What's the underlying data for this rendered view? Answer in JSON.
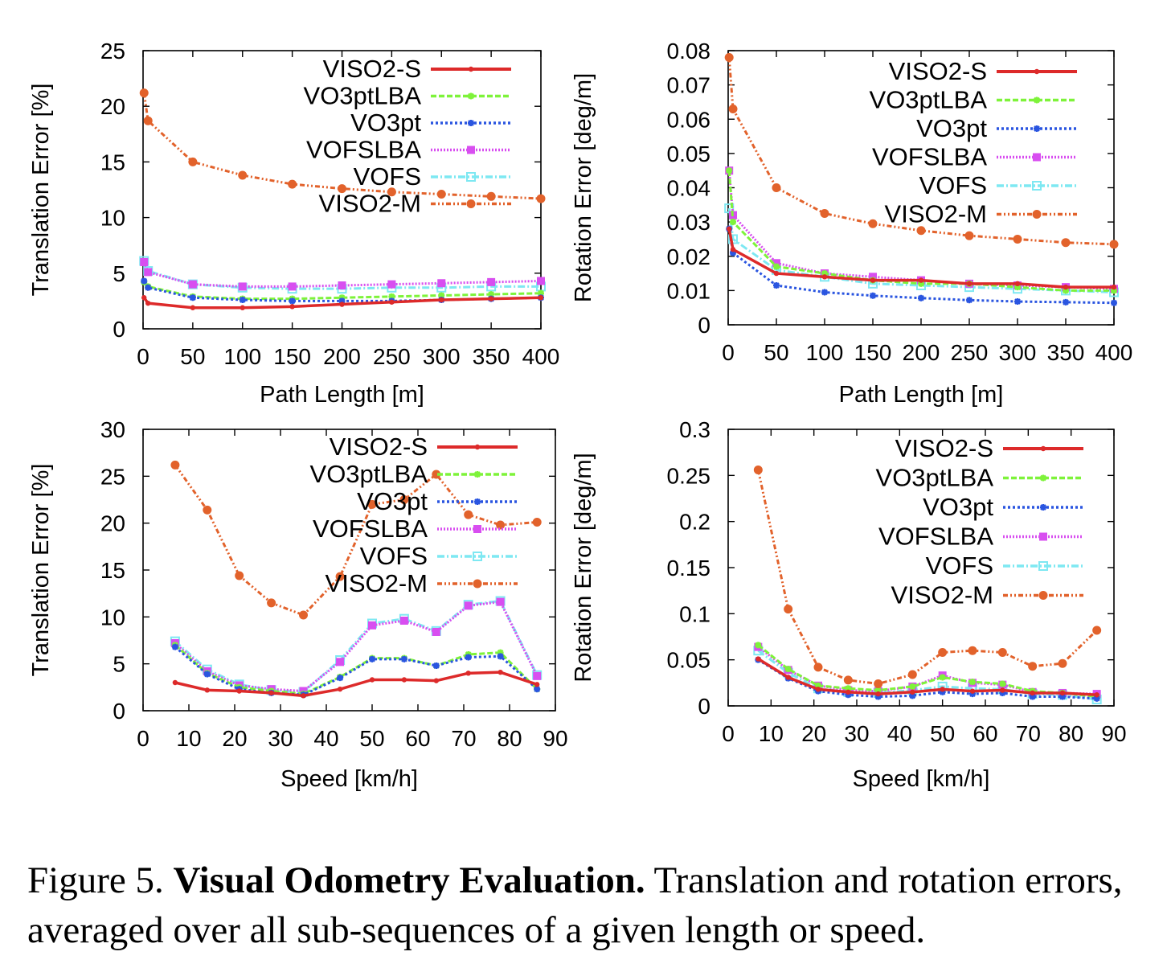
{
  "figure": {
    "caption_label": "Figure 5.",
    "caption_title": "Visual Odometry Evaluation.",
    "caption_text": "Translation and rotation errors, averaged over all sub-sequences of a given length or speed."
  },
  "legend_labels": [
    "VISO2-S",
    "VO3ptLBA",
    "VO3pt",
    "VOFSLBA",
    "VOFS",
    "VISO2-M"
  ],
  "colors": {
    "VISO2-S": "#dd2a2a",
    "VO3ptLBA": "#7ef33a",
    "VO3pt": "#2a55e0",
    "VOFSLBA": "#d84ef0",
    "VOFS": "#7ee8f2",
    "VISO2-M": "#e2622b"
  },
  "chart_data": [
    {
      "type": "line",
      "xlabel": "Path Length [m]",
      "ylabel": "Translation Error [%]",
      "xlim": [
        0,
        400
      ],
      "ylim": [
        0,
        25
      ],
      "xticks": [
        "0",
        "50",
        "100",
        "150",
        "200",
        "250",
        "300",
        "350",
        "400"
      ],
      "yticks": [
        "0",
        "5",
        "10",
        "15",
        "20",
        "25"
      ],
      "legend": "top-right",
      "grid": false,
      "x": [
        1,
        5,
        50,
        100,
        150,
        200,
        250,
        300,
        350,
        400
      ],
      "series": [
        {
          "name": "VISO2-S",
          "values": [
            2.8,
            2.3,
            1.9,
            1.9,
            2.0,
            2.2,
            2.4,
            2.6,
            2.7,
            2.8
          ]
        },
        {
          "name": "VO3ptLBA",
          "values": [
            4.2,
            3.8,
            2.9,
            2.7,
            2.7,
            2.8,
            2.9,
            3.0,
            3.1,
            3.2
          ]
        },
        {
          "name": "VO3pt",
          "values": [
            4.3,
            3.7,
            2.8,
            2.6,
            2.5,
            2.5,
            2.5,
            2.6,
            2.7,
            2.8
          ]
        },
        {
          "name": "VOFSLBA",
          "values": [
            6.0,
            5.1,
            4.0,
            3.8,
            3.8,
            3.9,
            4.0,
            4.1,
            4.2,
            4.3
          ]
        },
        {
          "name": "VOFS",
          "values": [
            6.1,
            5.2,
            4.0,
            3.7,
            3.6,
            3.6,
            3.7,
            3.7,
            3.8,
            3.8
          ]
        },
        {
          "name": "VISO2-M",
          "values": [
            21.2,
            18.7,
            15.0,
            13.8,
            13.0,
            12.6,
            12.3,
            12.1,
            11.9,
            11.7
          ]
        }
      ]
    },
    {
      "type": "line",
      "xlabel": "Path Length [m]",
      "ylabel": "Rotation Error [deg/m]",
      "xlim": [
        0,
        400
      ],
      "ylim": [
        0,
        0.08
      ],
      "xticks": [
        "0",
        "50",
        "100",
        "150",
        "200",
        "250",
        "300",
        "350",
        "400"
      ],
      "yticks": [
        "0",
        "0.01",
        "0.02",
        "0.03",
        "0.04",
        "0.05",
        "0.06",
        "0.07",
        "0.08"
      ],
      "legend": "top-right",
      "grid": false,
      "x": [
        1,
        5,
        50,
        100,
        150,
        200,
        250,
        300,
        350,
        400
      ],
      "series": [
        {
          "name": "VISO2-S",
          "values": [
            0.028,
            0.022,
            0.015,
            0.014,
            0.013,
            0.013,
            0.012,
            0.012,
            0.011,
            0.011
          ]
        },
        {
          "name": "VO3ptLBA",
          "values": [
            0.045,
            0.03,
            0.017,
            0.015,
            0.013,
            0.012,
            0.012,
            0.011,
            0.01,
            0.01
          ]
        },
        {
          "name": "VO3pt",
          "values": [
            0.028,
            0.021,
            0.0115,
            0.0095,
            0.0085,
            0.0078,
            0.0072,
            0.0068,
            0.0066,
            0.0064
          ]
        },
        {
          "name": "VOFSLBA",
          "values": [
            0.045,
            0.032,
            0.018,
            0.015,
            0.014,
            0.013,
            0.012,
            0.0115,
            0.011,
            0.0105
          ]
        },
        {
          "name": "VOFS",
          "values": [
            0.034,
            0.025,
            0.016,
            0.014,
            0.012,
            0.0115,
            0.011,
            0.0105,
            0.01,
            0.0095
          ]
        },
        {
          "name": "VISO2-M",
          "values": [
            0.078,
            0.063,
            0.04,
            0.0325,
            0.0295,
            0.0275,
            0.026,
            0.025,
            0.024,
            0.0235
          ]
        }
      ]
    },
    {
      "type": "line",
      "xlabel": "Speed [km/h]",
      "ylabel": "Translation Error [%]",
      "xlim": [
        0,
        90
      ],
      "ylim": [
        0,
        30
      ],
      "xticks": [
        "0",
        "10",
        "20",
        "30",
        "40",
        "50",
        "60",
        "70",
        "80",
        "90"
      ],
      "yticks": [
        "0",
        "5",
        "10",
        "15",
        "20",
        "25",
        "30"
      ],
      "legend": "top-right",
      "grid": false,
      "x": [
        7,
        14,
        21,
        28,
        35,
        43,
        50,
        57,
        64,
        71,
        78,
        86
      ],
      "series": [
        {
          "name": "VISO2-S",
          "values": [
            3.0,
            2.2,
            2.1,
            1.9,
            1.6,
            2.3,
            3.3,
            3.3,
            3.2,
            4.0,
            4.1,
            2.8
          ]
        },
        {
          "name": "VO3ptLBA",
          "values": [
            7.0,
            4.0,
            2.5,
            2.1,
            1.8,
            3.6,
            5.6,
            5.6,
            4.8,
            6.0,
            6.2,
            2.3
          ]
        },
        {
          "name": "VO3pt",
          "values": [
            6.8,
            3.9,
            2.3,
            1.9,
            1.7,
            3.5,
            5.5,
            5.5,
            4.8,
            5.7,
            5.8,
            2.3
          ]
        },
        {
          "name": "VOFSLBA",
          "values": [
            7.2,
            4.2,
            2.7,
            2.3,
            2.1,
            5.2,
            9.1,
            9.6,
            8.4,
            11.2,
            11.6,
            3.7
          ]
        },
        {
          "name": "VOFS",
          "values": [
            7.4,
            4.4,
            2.8,
            2.2,
            2.0,
            5.4,
            9.3,
            9.8,
            8.5,
            11.3,
            11.7,
            3.8
          ]
        },
        {
          "name": "VISO2-M",
          "values": [
            26.2,
            21.4,
            14.4,
            11.5,
            10.2,
            14.3,
            22.0,
            22.5,
            25.2,
            20.9,
            19.8,
            20.1
          ]
        }
      ]
    },
    {
      "type": "line",
      "xlabel": "Speed [km/h]",
      "ylabel": "Rotation Error [deg/m]",
      "xlim": [
        0,
        90
      ],
      "ylim": [
        0,
        0.3
      ],
      "xticks": [
        "0",
        "10",
        "20",
        "30",
        "40",
        "50",
        "60",
        "70",
        "80",
        "90"
      ],
      "yticks": [
        "0",
        "0.05",
        "0.1",
        "0.15",
        "0.2",
        "0.25",
        "0.3"
      ],
      "legend": "top-right",
      "grid": false,
      "x": [
        7,
        14,
        21,
        28,
        35,
        43,
        50,
        57,
        64,
        71,
        78,
        86
      ],
      "series": [
        {
          "name": "VISO2-S",
          "values": [
            0.051,
            0.031,
            0.018,
            0.015,
            0.013,
            0.015,
            0.018,
            0.016,
            0.017,
            0.014,
            0.014,
            0.012
          ]
        },
        {
          "name": "VO3ptLBA",
          "values": [
            0.066,
            0.04,
            0.022,
            0.019,
            0.017,
            0.021,
            0.031,
            0.026,
            0.024,
            0.016,
            0.014,
            0.01
          ]
        },
        {
          "name": "VO3pt",
          "values": [
            0.05,
            0.03,
            0.016,
            0.012,
            0.01,
            0.011,
            0.015,
            0.013,
            0.014,
            0.01,
            0.01,
            0.008
          ]
        },
        {
          "name": "VOFSLBA",
          "values": [
            0.064,
            0.039,
            0.022,
            0.017,
            0.016,
            0.021,
            0.033,
            0.025,
            0.023,
            0.015,
            0.014,
            0.013
          ]
        },
        {
          "name": "VOFS",
          "values": [
            0.06,
            0.036,
            0.019,
            0.015,
            0.014,
            0.017,
            0.021,
            0.019,
            0.018,
            0.013,
            0.012,
            0.007
          ]
        },
        {
          "name": "VISO2-M",
          "values": [
            0.256,
            0.105,
            0.042,
            0.028,
            0.024,
            0.034,
            0.058,
            0.06,
            0.058,
            0.043,
            0.046,
            0.082
          ]
        }
      ]
    }
  ]
}
